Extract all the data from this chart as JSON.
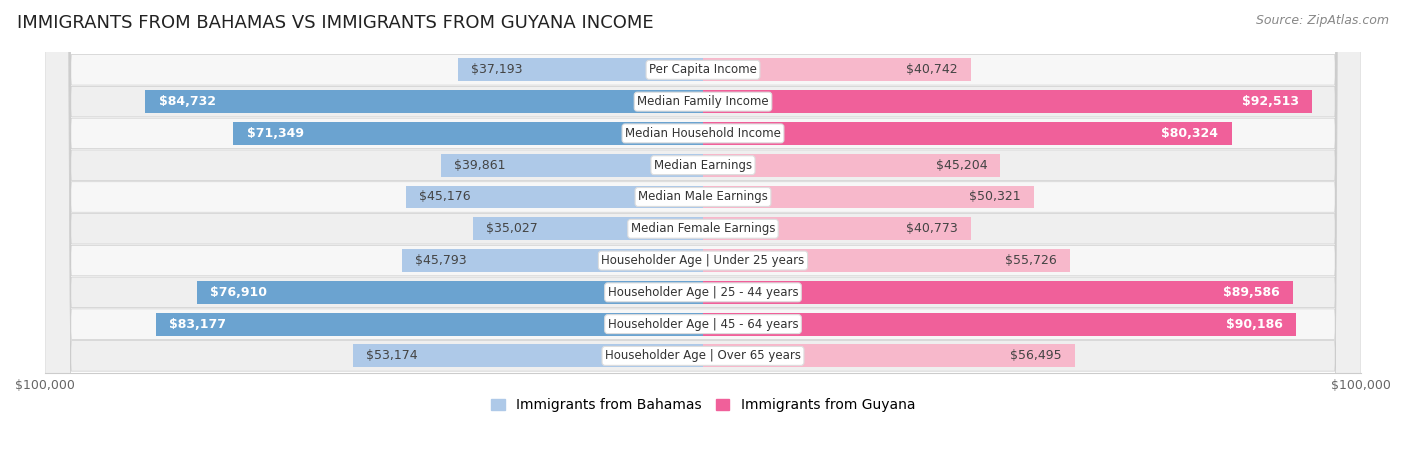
{
  "title": "IMMIGRANTS FROM BAHAMAS VS IMMIGRANTS FROM GUYANA INCOME",
  "source": "Source: ZipAtlas.com",
  "categories": [
    "Per Capita Income",
    "Median Family Income",
    "Median Household Income",
    "Median Earnings",
    "Median Male Earnings",
    "Median Female Earnings",
    "Householder Age | Under 25 years",
    "Householder Age | 25 - 44 years",
    "Householder Age | 45 - 64 years",
    "Householder Age | Over 65 years"
  ],
  "bahamas_values": [
    37193,
    84732,
    71349,
    39861,
    45176,
    35027,
    45793,
    76910,
    83177,
    53174
  ],
  "guyana_values": [
    40742,
    92513,
    80324,
    45204,
    50321,
    40773,
    55726,
    89586,
    90186,
    56495
  ],
  "bahamas_labels": [
    "$37,193",
    "$84,732",
    "$71,349",
    "$39,861",
    "$45,176",
    "$35,027",
    "$45,793",
    "$76,910",
    "$83,177",
    "$53,174"
  ],
  "guyana_labels": [
    "$40,742",
    "$92,513",
    "$80,324",
    "$45,204",
    "$50,321",
    "$40,773",
    "$55,726",
    "$89,586",
    "$90,186",
    "$56,495"
  ],
  "bahamas_inside_threshold": 60000,
  "guyana_inside_threshold": 60000,
  "max_value": 100000,
  "bar_height": 0.72,
  "bahamas_color_light": "#aec9e8",
  "bahamas_color_dark": "#6ba3d0",
  "guyana_color_light": "#f7b8cb",
  "guyana_color_dark": "#f0609a",
  "row_color_odd": "#f7f7f7",
  "row_color_even": "#efefef",
  "bg_color": "#ffffff",
  "title_fontsize": 13,
  "source_fontsize": 9,
  "legend_fontsize": 10,
  "tick_fontsize": 9,
  "value_fontsize": 9,
  "cat_fontsize": 8.5,
  "inside_label_color": "white",
  "outside_label_color": "#444444"
}
